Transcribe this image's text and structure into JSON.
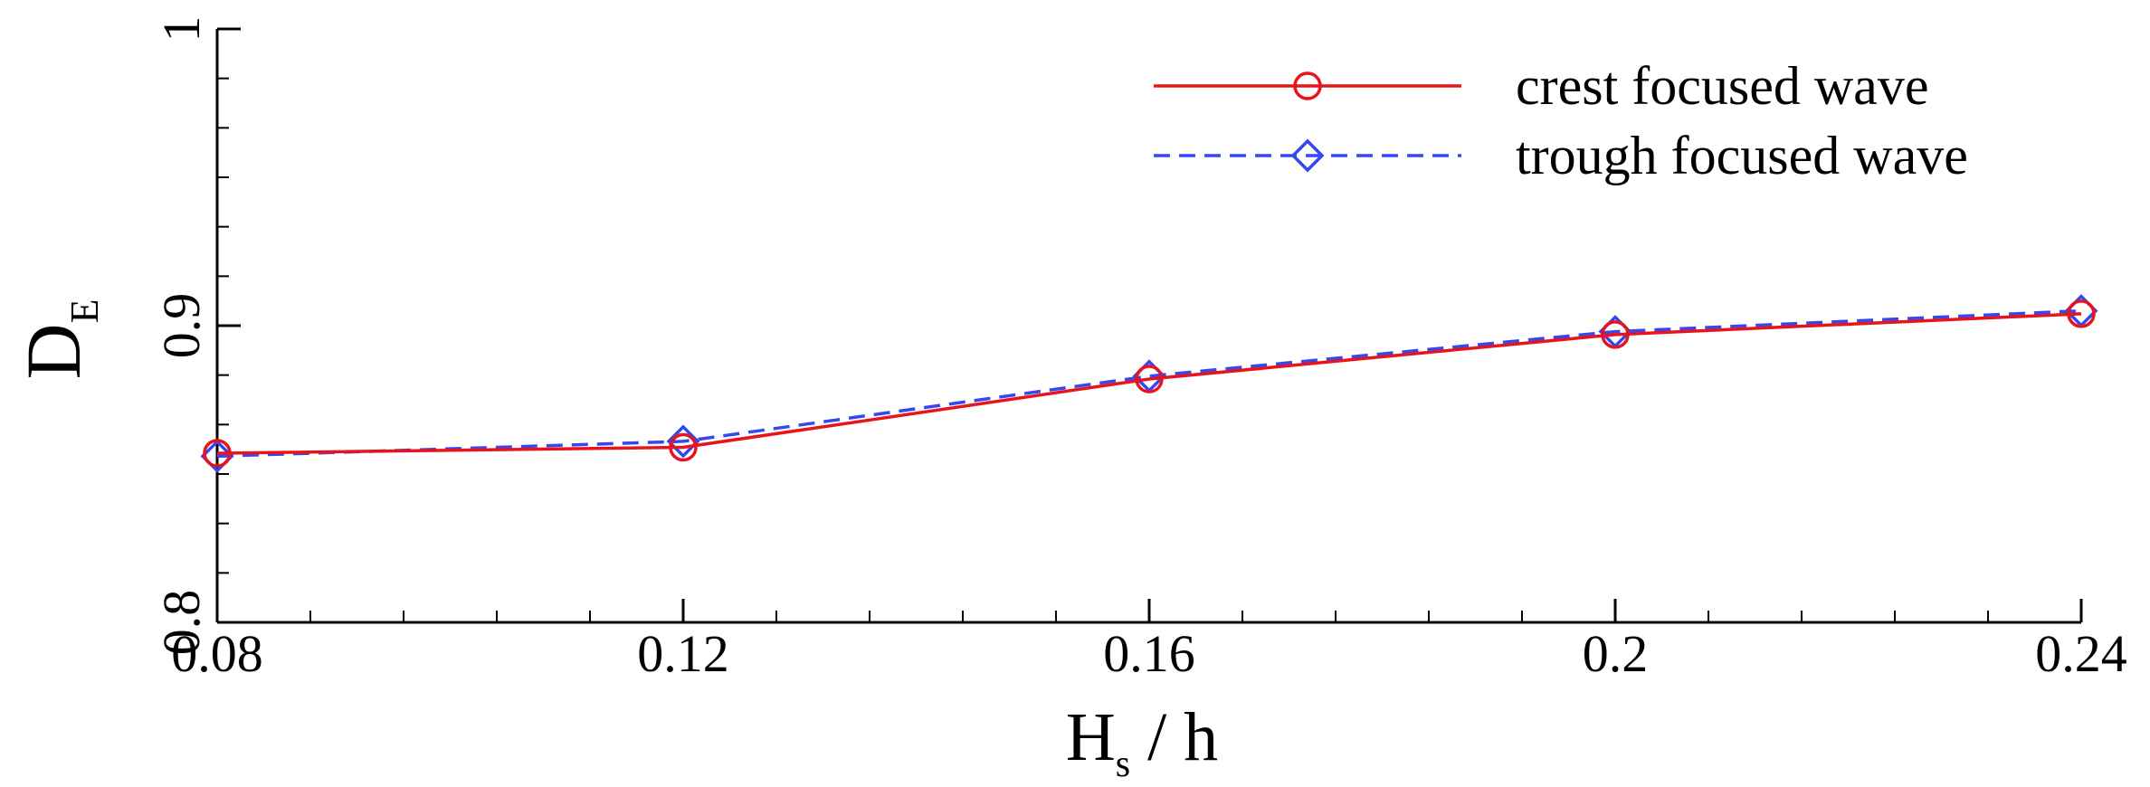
{
  "chart_data": {
    "type": "line",
    "xlabel": {
      "main": "H",
      "sub": "s",
      "rest": " / h"
    },
    "ylabel": {
      "main": "D",
      "sub": "E"
    },
    "xlim": [
      0.08,
      0.24
    ],
    "ylim": [
      0.8,
      1.0
    ],
    "x_ticks": [
      0.08,
      0.12,
      0.16,
      0.2,
      0.24
    ],
    "x_tick_labels": [
      "0.08",
      "0.12",
      "0.16",
      "0.2",
      "0.24"
    ],
    "y_ticks": [
      0.8,
      0.9,
      1.0
    ],
    "y_tick_labels": [
      "0.8",
      "0.9",
      "1"
    ],
    "grid": false,
    "legend_position": "top-right",
    "x": [
      0.08,
      0.12,
      0.16,
      0.2,
      0.24
    ],
    "series": [
      {
        "name": "crest focused wave",
        "values": [
          0.857,
          0.859,
          0.882,
          0.897,
          0.904
        ],
        "color": "#e8141c",
        "marker": "circle",
        "line": "solid"
      },
      {
        "name": "trough focused wave",
        "values": [
          0.856,
          0.861,
          0.883,
          0.898,
          0.905
        ],
        "color": "#3548f0",
        "marker": "diamond",
        "line": "dashed"
      }
    ]
  }
}
